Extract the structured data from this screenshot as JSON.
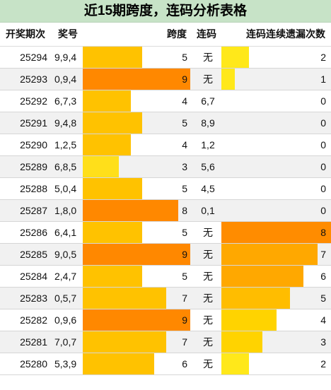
{
  "title": "近15期跨度，连码分析表格",
  "headers": {
    "period": "开奖期次",
    "number": "奖号",
    "span": "跨度",
    "lianma": "连码",
    "miss": "连码连续遗漏次数"
  },
  "colors": {
    "title_bg": "#c7e3c7",
    "bar_span_low": "#ffdf1a",
    "bar_span_mid": "#ffc200",
    "bar_span_high": "#ff8800",
    "bar_miss_scale": [
      "#ffe81a",
      "#ffd300",
      "#ffbd00",
      "#ffa800",
      "#ff8c00"
    ]
  },
  "chart_data": {
    "type": "table",
    "span_max": 9,
    "miss_max": 8,
    "rows": [
      {
        "period": "25294",
        "numbers": "9,9,4",
        "span": 5,
        "lianma": "无",
        "miss": 2
      },
      {
        "period": "25293",
        "numbers": "0,9,4",
        "span": 9,
        "lianma": "无",
        "miss": 1
      },
      {
        "period": "25292",
        "numbers": "6,7,3",
        "span": 4,
        "lianma": "6,7",
        "miss": 0
      },
      {
        "period": "25291",
        "numbers": "9,4,8",
        "span": 5,
        "lianma": "8,9",
        "miss": 0
      },
      {
        "period": "25290",
        "numbers": "1,2,5",
        "span": 4,
        "lianma": "1,2",
        "miss": 0
      },
      {
        "period": "25289",
        "numbers": "6,8,5",
        "span": 3,
        "lianma": "5,6",
        "miss": 0
      },
      {
        "period": "25288",
        "numbers": "5,0,4",
        "span": 5,
        "lianma": "4,5",
        "miss": 0
      },
      {
        "period": "25287",
        "numbers": "1,8,0",
        "span": 8,
        "lianma": "0,1",
        "miss": 0
      },
      {
        "period": "25286",
        "numbers": "6,4,1",
        "span": 5,
        "lianma": "无",
        "miss": 8
      },
      {
        "period": "25285",
        "numbers": "9,0,5",
        "span": 9,
        "lianma": "无",
        "miss": 7
      },
      {
        "period": "25284",
        "numbers": "2,4,7",
        "span": 5,
        "lianma": "无",
        "miss": 6
      },
      {
        "period": "25283",
        "numbers": "0,5,7",
        "span": 7,
        "lianma": "无",
        "miss": 5
      },
      {
        "period": "25282",
        "numbers": "0,9,6",
        "span": 9,
        "lianma": "无",
        "miss": 4
      },
      {
        "period": "25281",
        "numbers": "7,0,7",
        "span": 7,
        "lianma": "无",
        "miss": 3
      },
      {
        "period": "25280",
        "numbers": "5,3,9",
        "span": 6,
        "lianma": "无",
        "miss": 2
      }
    ]
  }
}
